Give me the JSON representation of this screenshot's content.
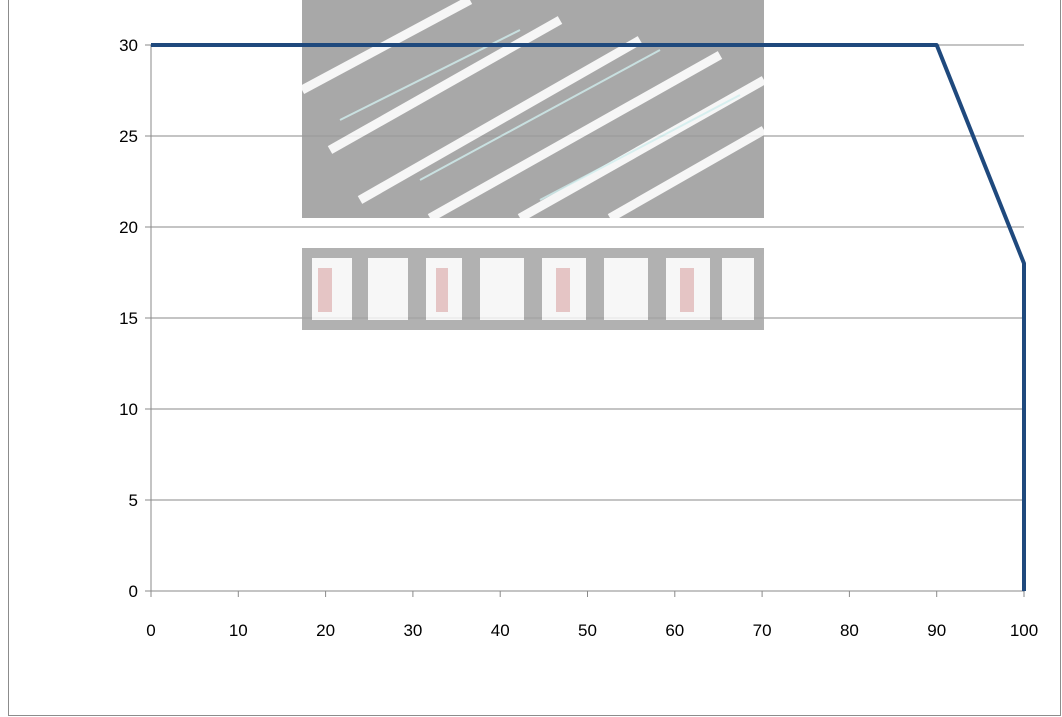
{
  "chart_data": {
    "type": "line",
    "title": "",
    "xlabel": "",
    "ylabel": "",
    "xlim": [
      0,
      100
    ],
    "ylim": [
      0,
      30
    ],
    "x_ticks": [
      "0",
      "10",
      "20",
      "30",
      "40",
      "50",
      "60",
      "70",
      "80",
      "90",
      "100"
    ],
    "y_ticks": [
      "0",
      "5",
      "10",
      "15",
      "20",
      "25",
      "30"
    ],
    "grid": "horizontal",
    "legend": "none",
    "series": [
      {
        "color": "#1f497d",
        "x": [
          0,
          90,
          100,
          100
        ],
        "y": [
          30,
          30,
          18,
          0
        ]
      }
    ]
  },
  "colors": {
    "line": "#1f497d",
    "gridline": "#8a8a8a",
    "frame_border": "#8c8c8c",
    "watermark": "#7f7f7f"
  },
  "watermark_icon": "logo-watermark-icon"
}
